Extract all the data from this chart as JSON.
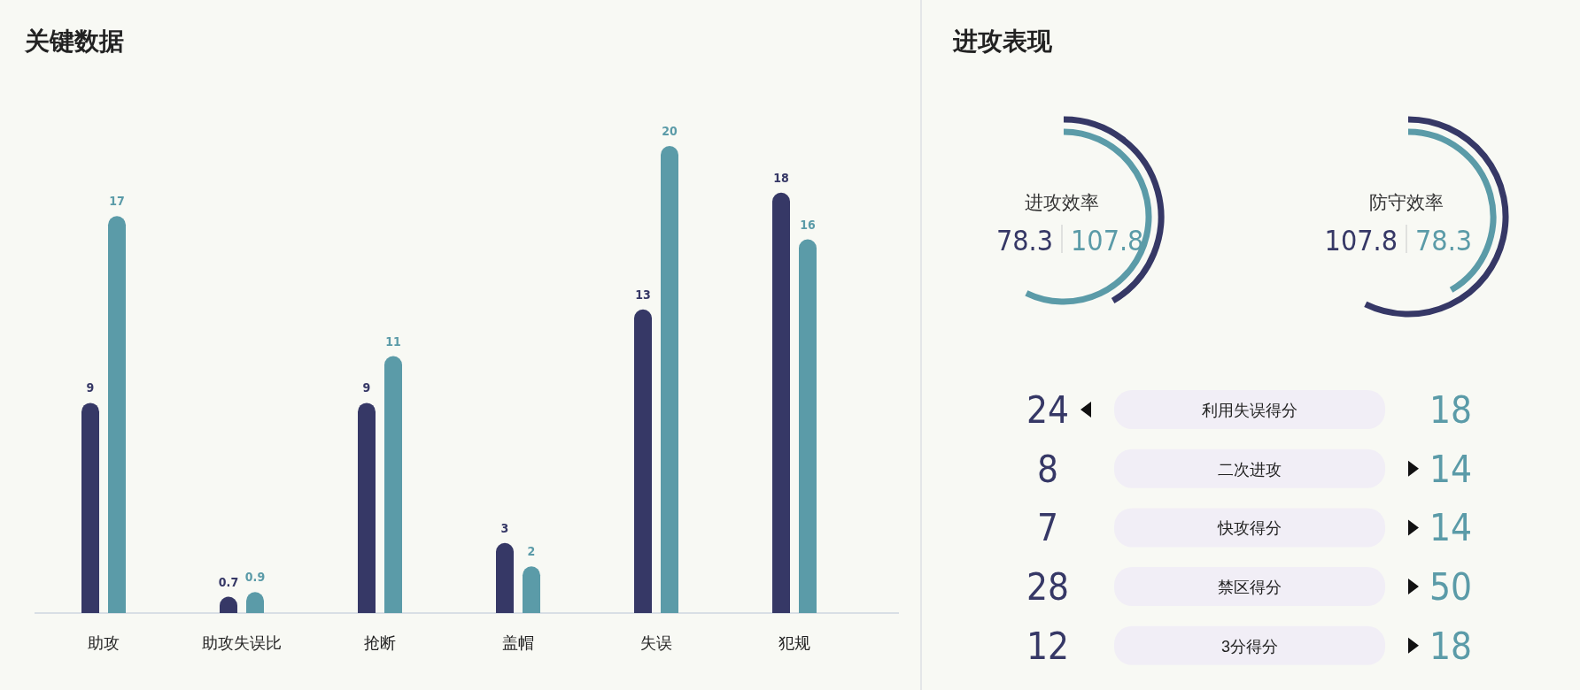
{
  "chart_data": [
    {
      "type": "bar",
      "title": "关键数据",
      "categories": [
        "助攻",
        "助攻失误比",
        "抢断",
        "盖帽",
        "失误",
        "犯规"
      ],
      "data_labels": true,
      "series": [
        {
          "color": "#363866",
          "values": [
            9,
            0.7,
            9,
            3,
            13,
            18
          ]
        },
        {
          "color": "#5b9ba8",
          "values": [
            17,
            0.9,
            11,
            2,
            20,
            16
          ]
        }
      ]
    },
    {
      "type": "other",
      "title": "进攻表现",
      "categories": [
        "进攻效率",
        "防守效率"
      ],
      "data_labels": true,
      "series": [
        {
          "color": "#363866",
          "values": [
            78.3,
            107.8
          ]
        },
        {
          "color": "#5b9ba8",
          "values": [
            107.8,
            78.3
          ]
        }
      ]
    },
    {
      "type": "other",
      "categories": [
        "利用失误得分",
        "二次进攻",
        "快攻得分",
        "禁区得分",
        "3分得分"
      ],
      "data_labels": true,
      "series": [
        {
          "color": "#363866",
          "values": [
            24,
            8,
            7,
            28,
            12
          ]
        },
        {
          "color": "#5b9ba8",
          "values": [
            18,
            14,
            14,
            50,
            18
          ]
        }
      ]
    }
  ]
}
